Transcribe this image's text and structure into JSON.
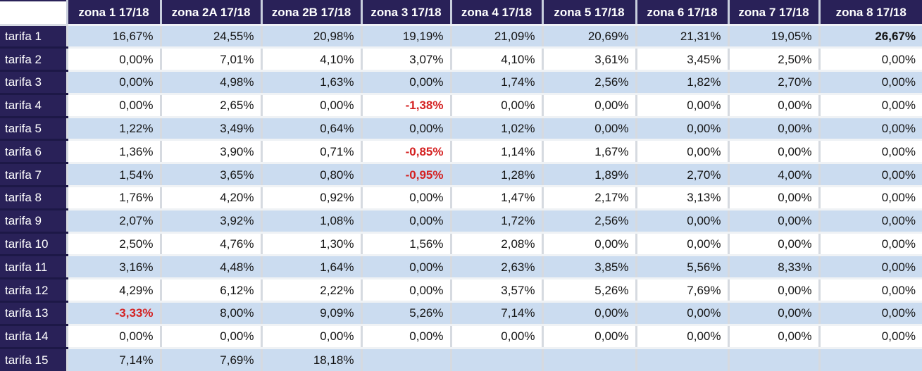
{
  "table": {
    "corner": "",
    "columns": [
      "zona 1 17/18",
      "zona 2A 17/18",
      "zona 2B 17/18",
      "zona 3 17/18",
      "zona 4 17/18",
      "zona 5 17/18",
      "zona 6 17/18",
      "zona 7 17/18",
      "zona 8 17/18"
    ],
    "rows": [
      {
        "label": "tarifa 1",
        "values": [
          "16,67%",
          "24,55%",
          "20,98%",
          "19,19%",
          "21,09%",
          "20,69%",
          "21,31%",
          "19,05%",
          "26,67%"
        ]
      },
      {
        "label": "tarifa 2",
        "values": [
          "0,00%",
          "7,01%",
          "4,10%",
          "3,07%",
          "4,10%",
          "3,61%",
          "3,45%",
          "2,50%",
          "0,00%"
        ]
      },
      {
        "label": "tarifa 3",
        "values": [
          "0,00%",
          "4,98%",
          "1,63%",
          "0,00%",
          "1,74%",
          "2,56%",
          "1,82%",
          "2,70%",
          "0,00%"
        ]
      },
      {
        "label": "tarifa 4",
        "values": [
          "0,00%",
          "2,65%",
          "0,00%",
          "-1,38%",
          "0,00%",
          "0,00%",
          "0,00%",
          "0,00%",
          "0,00%"
        ]
      },
      {
        "label": "tarifa 5",
        "values": [
          "1,22%",
          "3,49%",
          "0,64%",
          "0,00%",
          "1,02%",
          "0,00%",
          "0,00%",
          "0,00%",
          "0,00%"
        ]
      },
      {
        "label": "tarifa 6",
        "values": [
          "1,36%",
          "3,90%",
          "0,71%",
          "-0,85%",
          "1,14%",
          "1,67%",
          "0,00%",
          "0,00%",
          "0,00%"
        ]
      },
      {
        "label": "tarifa 7",
        "values": [
          "1,54%",
          "3,65%",
          "0,80%",
          "-0,95%",
          "1,28%",
          "1,89%",
          "2,70%",
          "4,00%",
          "0,00%"
        ]
      },
      {
        "label": "tarifa 8",
        "values": [
          "1,76%",
          "4,20%",
          "0,92%",
          "0,00%",
          "1,47%",
          "2,17%",
          "3,13%",
          "0,00%",
          "0,00%"
        ]
      },
      {
        "label": "tarifa 9",
        "values": [
          "2,07%",
          "3,92%",
          "1,08%",
          "0,00%",
          "1,72%",
          "2,56%",
          "0,00%",
          "0,00%",
          "0,00%"
        ]
      },
      {
        "label": "tarifa 10",
        "values": [
          "2,50%",
          "4,76%",
          "1,30%",
          "1,56%",
          "2,08%",
          "0,00%",
          "0,00%",
          "0,00%",
          "0,00%"
        ]
      },
      {
        "label": "tarifa 11",
        "values": [
          "3,16%",
          "4,48%",
          "1,64%",
          "0,00%",
          "2,63%",
          "3,85%",
          "5,56%",
          "8,33%",
          "0,00%"
        ]
      },
      {
        "label": "tarifa 12",
        "values": [
          "4,29%",
          "6,12%",
          "2,22%",
          "0,00%",
          "3,57%",
          "5,26%",
          "7,69%",
          "0,00%",
          "0,00%"
        ]
      },
      {
        "label": "tarifa 13",
        "values": [
          "-3,33%",
          "8,00%",
          "9,09%",
          "5,26%",
          "7,14%",
          "0,00%",
          "0,00%",
          "0,00%",
          "0,00%"
        ]
      },
      {
        "label": "tarifa 14",
        "values": [
          "0,00%",
          "0,00%",
          "0,00%",
          "0,00%",
          "0,00%",
          "0,00%",
          "0,00%",
          "0,00%",
          "0,00%"
        ]
      },
      {
        "label": "tarifa 15",
        "values": [
          "7,14%",
          "7,69%",
          "18,18%",
          "",
          "",
          "",
          "",
          "",
          ""
        ]
      }
    ],
    "bold_cells": [
      [
        0,
        8
      ]
    ]
  },
  "colors": {
    "header_bg": "#292158",
    "header_text": "#ffffff",
    "row_alt_bg": "#cbdcf0",
    "row_bg": "#ffffff",
    "negative_text": "#d42222"
  }
}
